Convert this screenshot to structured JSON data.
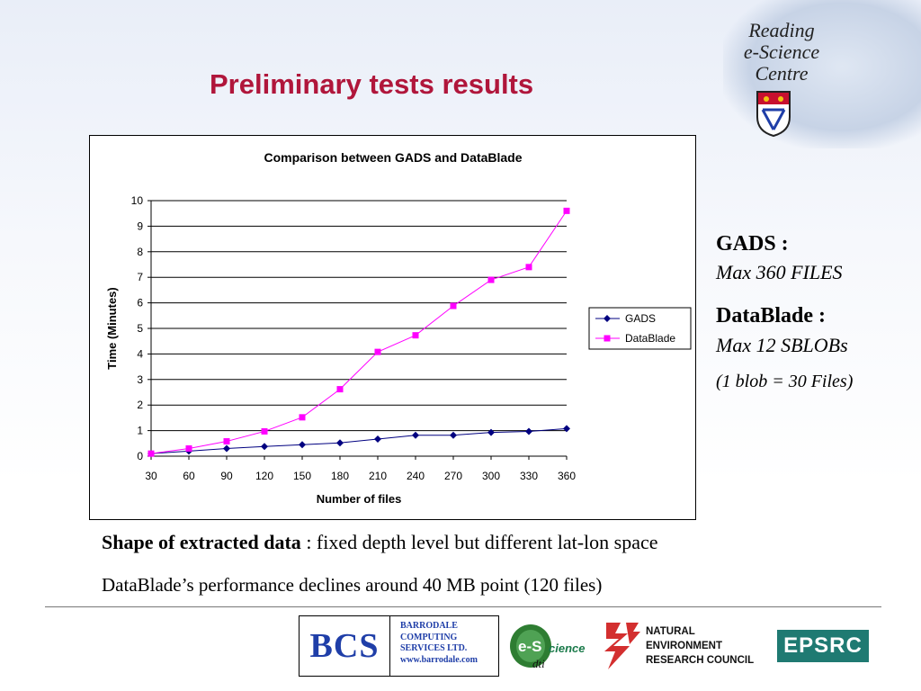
{
  "slide": {
    "title": "Preliminary tests results",
    "logo_text": [
      "Reading",
      "e-Science",
      "Centre"
    ],
    "side": {
      "gads_head": "GADS :",
      "gads_val": "Max 360 FILES",
      "db_head": "DataBlade :",
      "db_val": "Max 12 SBLOBs",
      "db_note": "(1 blob = 30 Files)"
    },
    "shape_label": "Shape of extracted data",
    "shape_rest": " : fixed depth level but different lat-lon space",
    "perf_note": "DataBlade’s performance declines around 40 MB point (120 files)",
    "footer": {
      "bcs_logo": "BCS",
      "bcs_lines": [
        "BARRODALE",
        "COMPUTING",
        "SERVICES LTD.",
        "www.barrodale.com"
      ],
      "escience": "e-Science",
      "dti": "dti",
      "nerc_lines": [
        "NATURAL",
        "ENVIRONMENT",
        "RESEARCH COUNCIL"
      ],
      "epsrc": "EPSRC"
    }
  },
  "chart_data": {
    "type": "line",
    "title": "Comparison between GADS and DataBlade",
    "xlabel": "Number of files",
    "ylabel": "Time (Minutes)",
    "categories": [
      "30",
      "60",
      "90",
      "120",
      "150",
      "180",
      "210",
      "240",
      "270",
      "300",
      "330",
      "360"
    ],
    "ylim": [
      0,
      10
    ],
    "yticks": [
      "0",
      "1",
      "2",
      "3",
      "4",
      "5",
      "6",
      "7",
      "8",
      "9",
      "10"
    ],
    "grid": true,
    "legend": "right",
    "series": [
      {
        "name": "GADS",
        "color": "#000080",
        "marker": "diamond",
        "values": [
          0.1,
          0.2,
          0.3,
          0.38,
          0.45,
          0.52,
          0.67,
          0.82,
          0.82,
          0.93,
          0.97,
          1.08
        ]
      },
      {
        "name": "DataBlade",
        "color": "#ff00ff",
        "marker": "square",
        "values": [
          0.1,
          0.3,
          0.58,
          0.97,
          1.52,
          2.62,
          4.08,
          4.73,
          5.88,
          6.9,
          7.4,
          9.6
        ]
      }
    ]
  }
}
